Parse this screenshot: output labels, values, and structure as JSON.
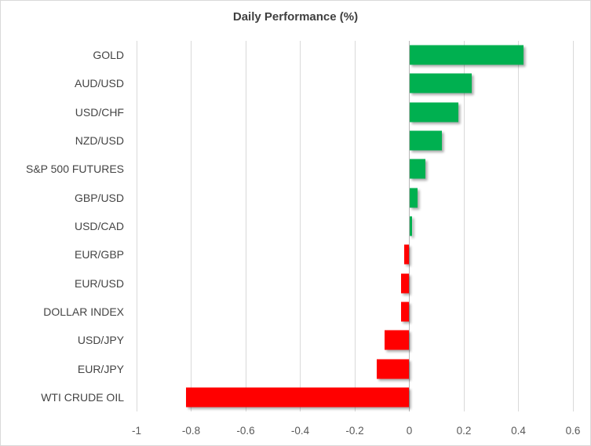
{
  "window": {
    "background": "#ffffff",
    "border_color": "#d9d9d9"
  },
  "chart_data": {
    "type": "bar",
    "orientation": "horizontal",
    "title": "Daily Performance (%)",
    "xlabel": "",
    "ylabel": "",
    "categories": [
      "GOLD",
      "AUD/USD",
      "USD/CHF",
      "NZD/USD",
      "S&P 500 FUTURES",
      "GBP/USD",
      "USD/CAD",
      "EUR/GBP",
      "EUR/USD",
      "DOLLAR INDEX",
      "USD/JPY",
      "EUR/JPY",
      "WTI CRUDE OIL"
    ],
    "values": [
      0.42,
      0.23,
      0.18,
      0.12,
      0.06,
      0.03,
      0.01,
      -0.02,
      -0.03,
      -0.03,
      -0.09,
      -0.12,
      -0.82
    ],
    "xlim": [
      -1,
      0.6
    ],
    "tick_values": [
      -1,
      -0.8,
      -0.6,
      -0.4,
      -0.2,
      0,
      0.2,
      0.4,
      0.6
    ],
    "tick_labels": [
      "-1",
      "-0.8",
      "-0.6",
      "-0.4",
      "-0.2",
      "0",
      "0.2",
      "0.4",
      "0.6"
    ],
    "grid": true,
    "legend": "none",
    "colors": {
      "positive": "#00b050",
      "negative": "#ff0000",
      "gridline": "#d9d9d9",
      "zero_axis": "#b7b7b7",
      "title_text": "#3f3f3f",
      "category_text": "#444444",
      "tick_text": "#595959"
    }
  }
}
